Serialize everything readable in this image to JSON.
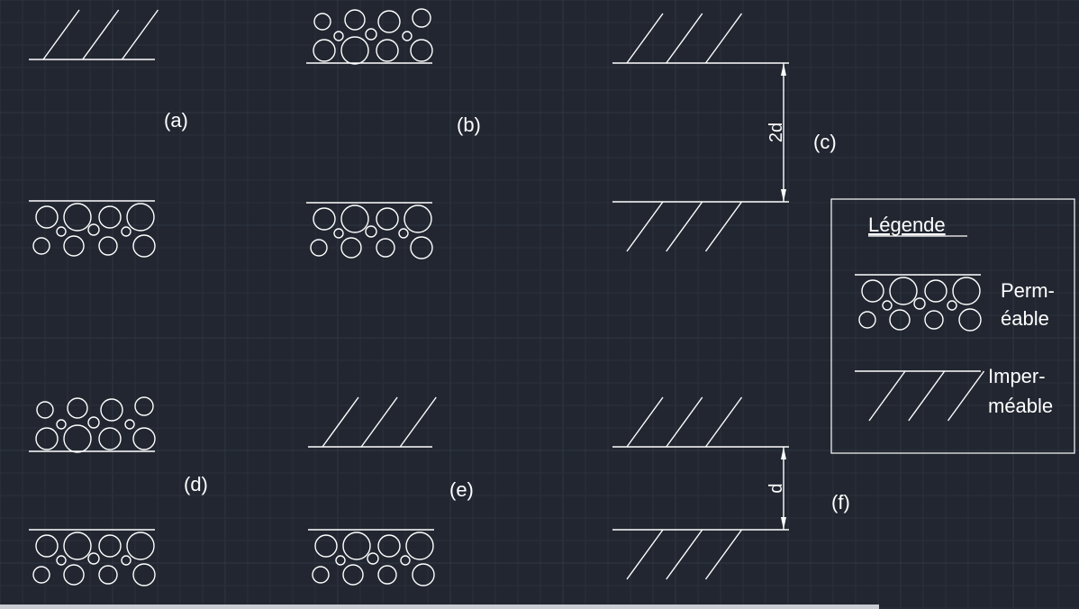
{
  "panels": {
    "a": {
      "label": "(a)"
    },
    "b": {
      "label": "(b)"
    },
    "c": {
      "label": "(c)",
      "dimension": "2d"
    },
    "d": {
      "label": "(d)"
    },
    "e": {
      "label": "(e)"
    },
    "f": {
      "label": "(f)",
      "dimension": "d"
    }
  },
  "legend": {
    "title": "Légende",
    "permeable": [
      "Perm-",
      "éable"
    ],
    "impermeable": [
      "Imper-",
      "méable"
    ]
  },
  "colors": {
    "background": "#212630",
    "stroke": "#ffffff",
    "grid": "#2a303b"
  }
}
